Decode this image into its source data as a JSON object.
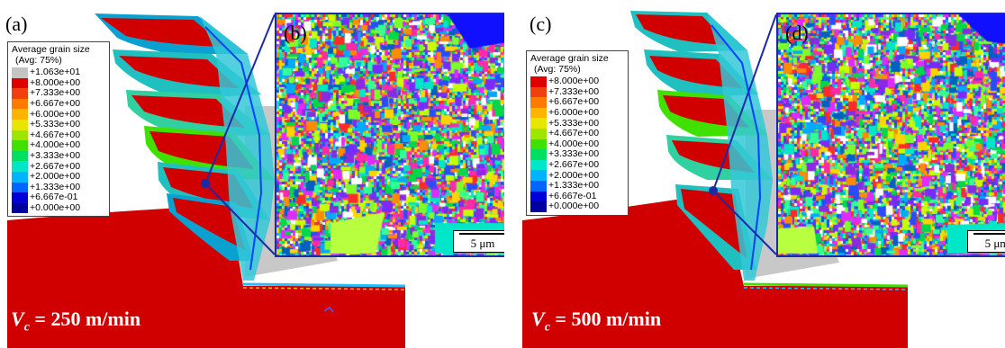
{
  "panels": [
    {
      "label": "(a)",
      "inset_label": "(b)",
      "legend": {
        "title": "Average grain size",
        "subtitle": "(Avg: 75%)",
        "entries": [
          {
            "value": "+1.063e+01",
            "color": "#c4c4c4"
          },
          {
            "value": "+8.000e+00",
            "color": "#e00000"
          },
          {
            "value": "+7.333e+00",
            "color": "#f04010"
          },
          {
            "value": "+6.667e+00",
            "color": "#ff7a00"
          },
          {
            "value": "+6.000e+00",
            "color": "#ffb400"
          },
          {
            "value": "+5.333e+00",
            "color": "#e6e600"
          },
          {
            "value": "+4.667e+00",
            "color": "#9ee600"
          },
          {
            "value": "+4.000e+00",
            "color": "#40e000"
          },
          {
            "value": "+3.333e+00",
            "color": "#00e060"
          },
          {
            "value": "+2.667e+00",
            "color": "#00e6c8"
          },
          {
            "value": "+2.000e+00",
            "color": "#00b4ff"
          },
          {
            "value": "+1.333e+00",
            "color": "#0064ff"
          },
          {
            "value": "+6.667e-01",
            "color": "#0000d8"
          },
          {
            "value": "+0.000e+00",
            "color": "#0000a0"
          }
        ]
      },
      "scale_bar": "5 μm",
      "cutting_speed_symbol": "V",
      "cutting_speed_sub": "c",
      "cutting_speed_value": " = 250 m/min"
    },
    {
      "label": "(c)",
      "inset_label": "(d)",
      "legend": {
        "title": "Average grain size",
        "subtitle": "(Avg: 75%)",
        "entries": [
          {
            "value": "+8.000e+00",
            "color": "#e00000"
          },
          {
            "value": "+7.333e+00",
            "color": "#f04010"
          },
          {
            "value": "+6.667e+00",
            "color": "#ff7a00"
          },
          {
            "value": "+6.000e+00",
            "color": "#ffb400"
          },
          {
            "value": "+5.333e+00",
            "color": "#e6e600"
          },
          {
            "value": "+4.667e+00",
            "color": "#9ee600"
          },
          {
            "value": "+4.000e+00",
            "color": "#40e000"
          },
          {
            "value": "+3.333e+00",
            "color": "#00e060"
          },
          {
            "value": "+2.667e+00",
            "color": "#00e6c8"
          },
          {
            "value": "+2.000e+00",
            "color": "#00b4ff"
          },
          {
            "value": "+1.333e+00",
            "color": "#0064ff"
          },
          {
            "value": "+6.667e-01",
            "color": "#0000d8"
          },
          {
            "value": "+0.000e+00",
            "color": "#0000a0"
          }
        ]
      },
      "scale_bar": "5 μm",
      "cutting_speed_symbol": "V",
      "cutting_speed_sub": "c",
      "cutting_speed_value": " = 500 m/min"
    }
  ],
  "colors": {
    "workpiece": "#d10000",
    "tool": "#c8c8c8",
    "inset_border": "#1a2aa8"
  }
}
